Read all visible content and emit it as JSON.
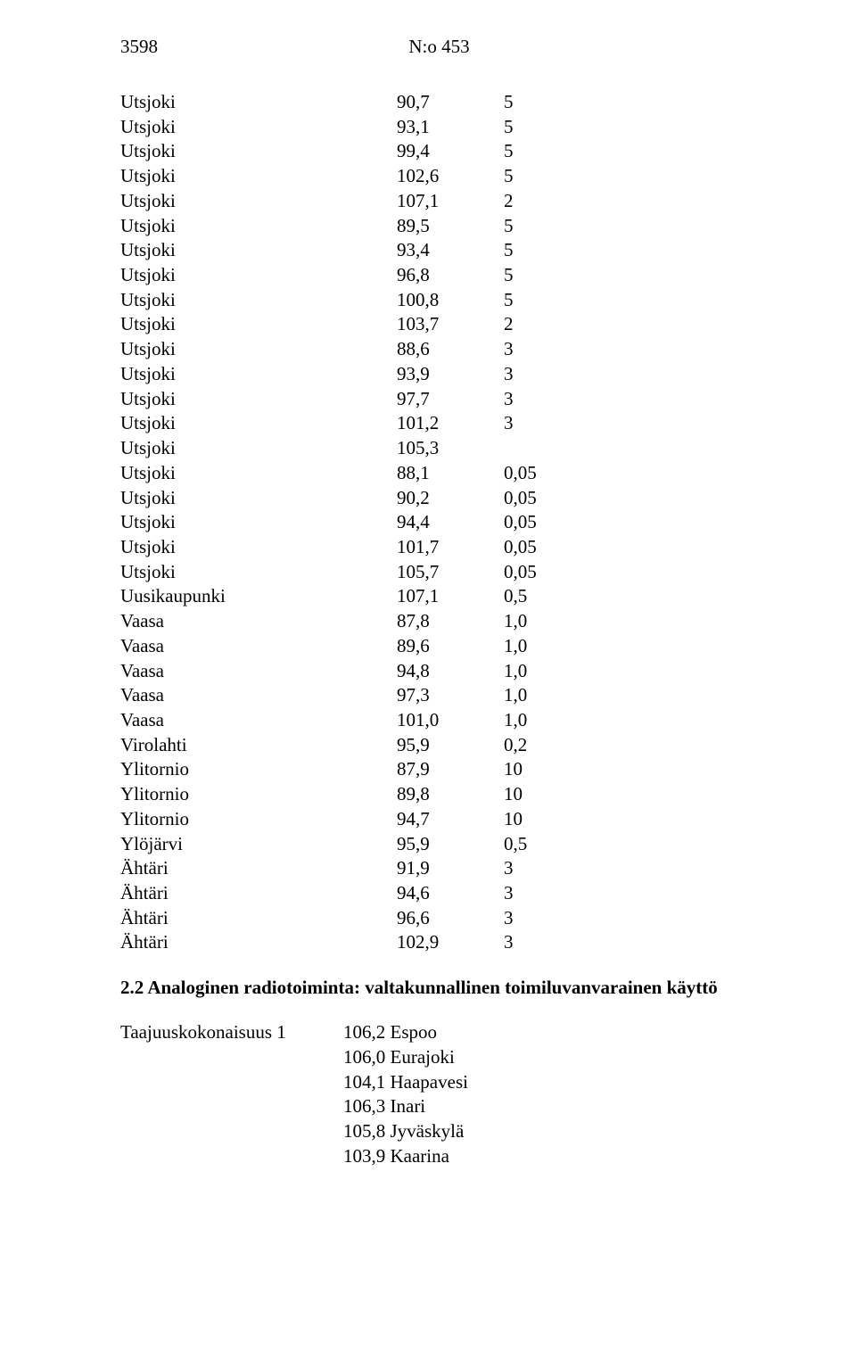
{
  "header": {
    "page_left": "3598",
    "page_center": "N:o 453"
  },
  "table": {
    "rows": [
      {
        "name": "Utsjoki",
        "v1": "90,7",
        "v2": "5"
      },
      {
        "name": "Utsjoki",
        "v1": "93,1",
        "v2": "5"
      },
      {
        "name": "Utsjoki",
        "v1": "99,4",
        "v2": "5"
      },
      {
        "name": "Utsjoki",
        "v1": "102,6",
        "v2": "5"
      },
      {
        "name": "Utsjoki",
        "v1": "107,1",
        "v2": "2"
      },
      {
        "name": "Utsjoki",
        "v1": "89,5",
        "v2": "5"
      },
      {
        "name": "Utsjoki",
        "v1": "93,4",
        "v2": "5"
      },
      {
        "name": "Utsjoki",
        "v1": "96,8",
        "v2": "5"
      },
      {
        "name": "Utsjoki",
        "v1": "100,8",
        "v2": "5"
      },
      {
        "name": "Utsjoki",
        "v1": "103,7",
        "v2": "2"
      },
      {
        "name": "Utsjoki",
        "v1": "88,6",
        "v2": "3"
      },
      {
        "name": "Utsjoki",
        "v1": "93,9",
        "v2": "3"
      },
      {
        "name": "Utsjoki",
        "v1": "97,7",
        "v2": "3"
      },
      {
        "name": "Utsjoki",
        "v1": "101,2",
        "v2": "3"
      },
      {
        "name": "Utsjoki",
        "v1": "105,3",
        "v2": ""
      },
      {
        "name": "Utsjoki",
        "v1": "88,1",
        "v2": "0,05"
      },
      {
        "name": "Utsjoki",
        "v1": "90,2",
        "v2": "0,05"
      },
      {
        "name": "Utsjoki",
        "v1": "94,4",
        "v2": "0,05"
      },
      {
        "name": "Utsjoki",
        "v1": "101,7",
        "v2": "0,05"
      },
      {
        "name": "Utsjoki",
        "v1": "105,7",
        "v2": "0,05"
      },
      {
        "name": "Uusikaupunki",
        "v1": "107,1",
        "v2": "0,5"
      },
      {
        "name": "Vaasa",
        "v1": "87,8",
        "v2": "1,0"
      },
      {
        "name": "Vaasa",
        "v1": "89,6",
        "v2": "1,0"
      },
      {
        "name": "Vaasa",
        "v1": "94,8",
        "v2": "1,0"
      },
      {
        "name": "Vaasa",
        "v1": "97,3",
        "v2": "1,0"
      },
      {
        "name": "Vaasa",
        "v1": "101,0",
        "v2": "1,0"
      },
      {
        "name": "Virolahti",
        "v1": "95,9",
        "v2": "0,2"
      },
      {
        "name": "Ylitornio",
        "v1": "87,9",
        "v2": "10"
      },
      {
        "name": "Ylitornio",
        "v1": "89,8",
        "v2": "10"
      },
      {
        "name": "Ylitornio",
        "v1": "94,7",
        "v2": "10"
      },
      {
        "name": "Ylöjärvi",
        "v1": "95,9",
        "v2": "0,5"
      },
      {
        "name": "Ähtäri",
        "v1": "91,9",
        "v2": "3"
      },
      {
        "name": "Ähtäri",
        "v1": "94,6",
        "v2": "3"
      },
      {
        "name": "Ähtäri",
        "v1": "96,6",
        "v2": "3"
      },
      {
        "name": "Ähtäri",
        "v1": "102,9",
        "v2": "3"
      }
    ]
  },
  "section_title": "2.2 Analoginen radiotoiminta: valtakunnallinen toimiluvanvarainen käyttö",
  "freq": {
    "label": "Taajuuskokonaisuus 1",
    "rows": [
      "106,2 Espoo",
      "106,0 Eurajoki",
      "104,1 Haapavesi",
      "106,3 Inari",
      "105,8 Jyväskylä",
      "103,9 Kaarina"
    ]
  }
}
